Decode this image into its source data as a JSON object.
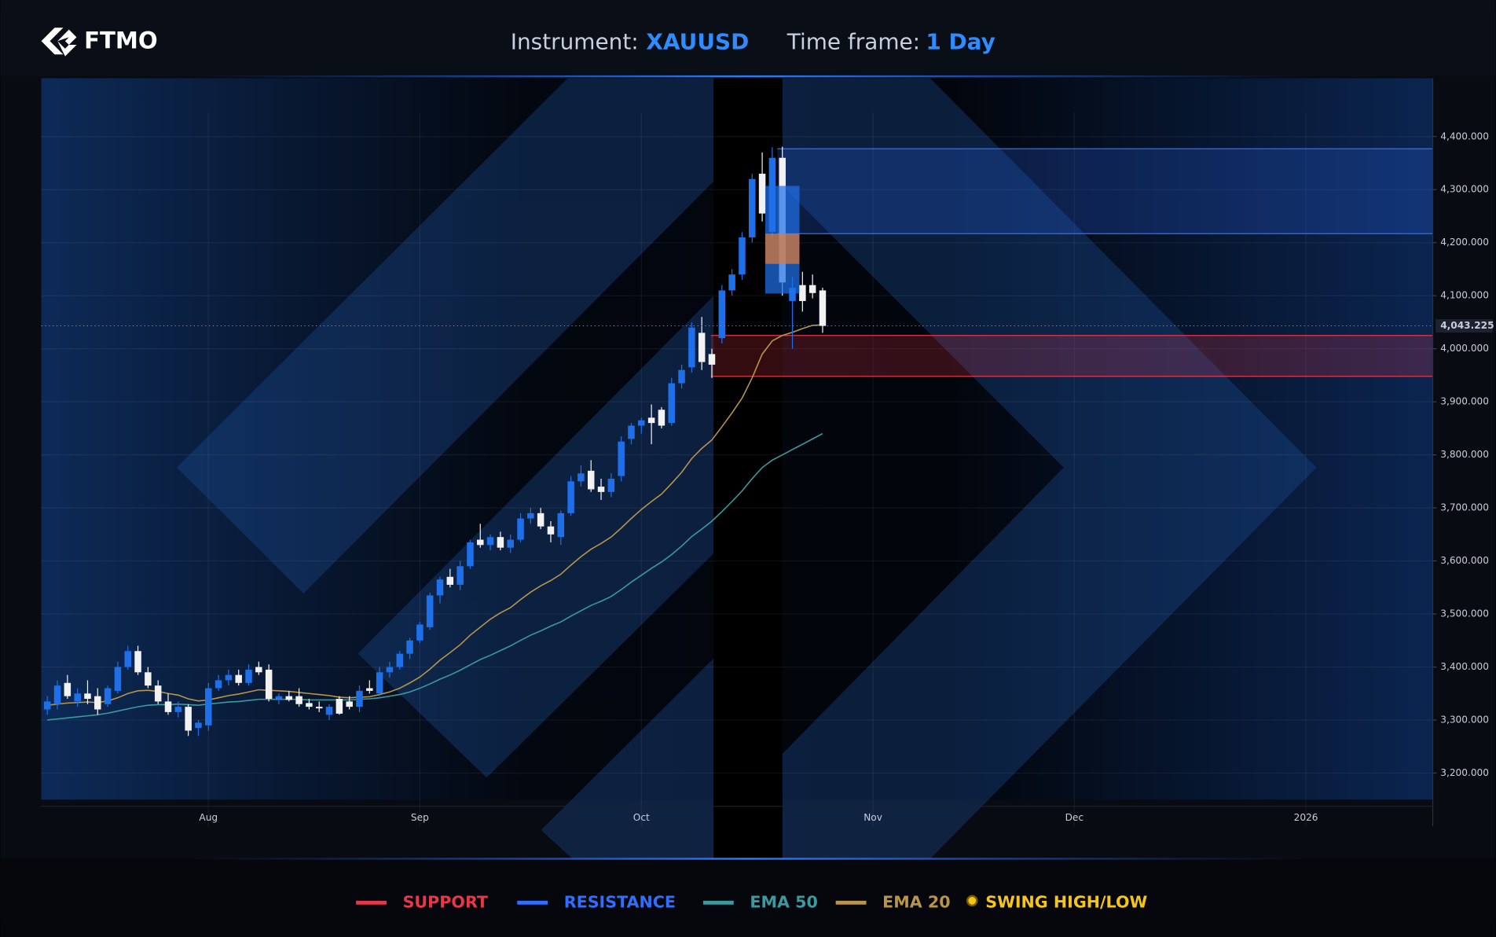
{
  "header": {
    "logo": "FTMO",
    "instrument_label": "Instrument:",
    "instrument": "XAUUSD",
    "timeframe_label": "Time frame:",
    "timeframe": "1 Day"
  },
  "chart_data": {
    "type": "candlestick",
    "x": [
      0,
      1,
      2,
      3,
      4,
      5,
      6,
      7,
      8,
      9,
      10,
      11,
      12,
      13,
      14,
      15,
      16,
      17,
      18,
      19,
      20,
      21,
      22,
      23,
      24,
      25,
      26,
      27,
      28,
      29,
      30,
      31,
      32,
      33,
      34,
      35,
      36,
      37,
      38,
      39,
      40,
      41,
      42,
      43,
      44,
      45,
      46,
      47,
      48,
      49,
      50,
      51,
      52,
      53,
      54,
      55,
      56,
      57,
      58,
      59,
      60,
      61,
      62,
      63,
      64,
      65,
      66,
      67,
      68,
      69,
      70,
      71,
      72,
      73,
      74,
      75,
      76,
      77
    ],
    "open": [
      3320,
      3330,
      3370,
      3335,
      3350,
      3345,
      3330,
      3355,
      3400,
      3430,
      3390,
      3365,
      3335,
      3315,
      3325,
      3285,
      3290,
      3360,
      3375,
      3385,
      3370,
      3400,
      3395,
      3340,
      3345,
      3345,
      3332,
      3325,
      3310,
      3340,
      3335,
      3325,
      3360,
      3350,
      3390,
      3400,
      3425,
      3450,
      3475,
      3535,
      3570,
      3555,
      3590,
      3640,
      3630,
      3645,
      3625,
      3640,
      3680,
      3690,
      3665,
      3645,
      3690,
      3750,
      3770,
      3740,
      3730,
      3760,
      3830,
      3855,
      3870,
      3885,
      3860,
      3935,
      3965,
      4030,
      3990,
      4020,
      4110,
      4140,
      4210,
      4330,
      4220,
      4360,
      4090,
      4120,
      4120,
      4110
    ],
    "high": [
      3345,
      3375,
      3385,
      3360,
      3375,
      3360,
      3365,
      3410,
      3440,
      3440,
      3400,
      3375,
      3350,
      3335,
      3330,
      3300,
      3370,
      3385,
      3395,
      3395,
      3405,
      3410,
      3405,
      3350,
      3355,
      3360,
      3340,
      3335,
      3330,
      3345,
      3345,
      3365,
      3375,
      3400,
      3410,
      3430,
      3455,
      3485,
      3540,
      3570,
      3585,
      3600,
      3640,
      3670,
      3650,
      3655,
      3650,
      3690,
      3700,
      3700,
      3675,
      3695,
      3760,
      3780,
      3790,
      3755,
      3765,
      3835,
      3860,
      3870,
      3895,
      3890,
      3945,
      3970,
      4050,
      4060,
      4000,
      4120,
      4150,
      4220,
      4330,
      4370,
      4380,
      4381,
      4135,
      4145,
      4140,
      4115
    ],
    "low": [
      3310,
      3320,
      3340,
      3325,
      3330,
      3310,
      3325,
      3350,
      3395,
      3385,
      3360,
      3330,
      3310,
      3305,
      3270,
      3270,
      3280,
      3355,
      3365,
      3365,
      3365,
      3385,
      3335,
      3330,
      3335,
      3325,
      3320,
      3315,
      3300,
      3310,
      3320,
      3315,
      3350,
      3345,
      3380,
      3395,
      3415,
      3445,
      3470,
      3520,
      3550,
      3545,
      3585,
      3625,
      3620,
      3620,
      3615,
      3635,
      3670,
      3660,
      3635,
      3630,
      3685,
      3740,
      3730,
      3715,
      3720,
      3750,
      3820,
      3840,
      3820,
      3850,
      3855,
      3925,
      3955,
      3960,
      3945,
      4010,
      4100,
      4130,
      4200,
      4240,
      4210,
      4100,
      4000,
      4070,
      4095,
      4030
    ],
    "close": [
      3335,
      3365,
      3345,
      3350,
      3340,
      3320,
      3360,
      3400,
      3430,
      3390,
      3365,
      3335,
      3315,
      3325,
      3280,
      3295,
      3360,
      3375,
      3385,
      3370,
      3395,
      3390,
      3340,
      3345,
      3338,
      3330,
      3325,
      3322,
      3325,
      3312,
      3325,
      3355,
      3355,
      3390,
      3400,
      3425,
      3450,
      3480,
      3535,
      3565,
      3555,
      3590,
      3635,
      3630,
      3645,
      3625,
      3640,
      3680,
      3690,
      3665,
      3650,
      3690,
      3750,
      3765,
      3735,
      3730,
      3755,
      3825,
      3855,
      3865,
      3860,
      3855,
      3935,
      3960,
      4040,
      3975,
      3970,
      4110,
      4140,
      4210,
      4320,
      4255,
      4360,
      4125,
      4115,
      4090,
      4105,
      4043
    ],
    "up_color": "#1f6fe8",
    "down_color": "#f2f2f2",
    "series": [
      {
        "name": "EMA 50",
        "color": "#3a9aa0",
        "values": [
          3300,
          3302,
          3304,
          3306,
          3308,
          3310,
          3313,
          3317,
          3321,
          3325,
          3328,
          3329,
          3329,
          3330,
          3329,
          3328,
          3330,
          3332,
          3334,
          3335,
          3337,
          3339,
          3339,
          3339,
          3339,
          3339,
          3338,
          3338,
          3338,
          3338,
          3338,
          3339,
          3340,
          3342,
          3345,
          3348,
          3353,
          3360,
          3368,
          3377,
          3385,
          3394,
          3404,
          3414,
          3422,
          3431,
          3440,
          3450,
          3460,
          3468,
          3477,
          3485,
          3496,
          3506,
          3516,
          3524,
          3533,
          3546,
          3560,
          3573,
          3586,
          3598,
          3612,
          3628,
          3646,
          3660,
          3675,
          3693,
          3712,
          3732,
          3755,
          3776,
          3790,
          3800,
          3810,
          3820,
          3830,
          3840
        ]
      },
      {
        "name": "EMA 20",
        "color": "#b8954a",
        "values": [
          3328,
          3330,
          3332,
          3333,
          3334,
          3333,
          3336,
          3342,
          3350,
          3355,
          3356,
          3354,
          3350,
          3347,
          3340,
          3336,
          3338,
          3342,
          3346,
          3349,
          3353,
          3357,
          3356,
          3355,
          3354,
          3352,
          3350,
          3348,
          3346,
          3343,
          3342,
          3343,
          3344,
          3348,
          3353,
          3360,
          3370,
          3381,
          3396,
          3413,
          3427,
          3442,
          3460,
          3475,
          3490,
          3502,
          3512,
          3527,
          3541,
          3553,
          3563,
          3575,
          3592,
          3608,
          3622,
          3633,
          3645,
          3662,
          3680,
          3697,
          3712,
          3726,
          3746,
          3767,
          3793,
          3812,
          3828,
          3853,
          3879,
          3907,
          3945,
          3990,
          4015,
          4025,
          4031,
          4038,
          4044,
          4045
        ]
      }
    ],
    "zones": [
      {
        "name": "SUPPORT",
        "color": "#e8364a",
        "xlim": [
          65.9,
          137.6
        ],
        "ylim": [
          3948,
          4025
        ]
      },
      {
        "name": "RESISTANCE",
        "color": "#2f6fff",
        "xlim": [
          72.5,
          137.6
        ],
        "ylim": [
          4217,
          4377
        ]
      }
    ],
    "highlights": [
      {
        "color": "#1f6fe8",
        "xlim": [
          71.3,
          74.7
        ],
        "ylim": [
          4104,
          4307
        ]
      },
      {
        "color": "#e07b39",
        "xlim": [
          71.3,
          74.7
        ],
        "ylim": [
          4160,
          4217
        ]
      }
    ],
    "swing_label": "SWING HIGH/LOW",
    "swing_color": "#f5c518",
    "last_price": {
      "value": 4043.225,
      "label": "4,043.225"
    },
    "xlim": [
      -0.6,
      137.6
    ],
    "ylim": [
      3150,
      4510
    ],
    "xticks": [
      {
        "value": 16,
        "label": "Aug"
      },
      {
        "value": 37,
        "label": "Sep"
      },
      {
        "value": 59,
        "label": "Oct"
      },
      {
        "value": 82,
        "label": "Nov"
      },
      {
        "value": 102,
        "label": "Dec"
      },
      {
        "value": 125,
        "label": "2026"
      }
    ],
    "yticks": [
      {
        "value": 3200,
        "label": "3,200.000"
      },
      {
        "value": 3300,
        "label": "3,300.000"
      },
      {
        "value": 3400,
        "label": "3,400.000"
      },
      {
        "value": 3500,
        "label": "3,500.000"
      },
      {
        "value": 3600,
        "label": "3,600.000"
      },
      {
        "value": 3700,
        "label": "3,700.000"
      },
      {
        "value": 3800,
        "label": "3,800.000"
      },
      {
        "value": 3900,
        "label": "3,900.000"
      },
      {
        "value": 4000,
        "label": "4,000.000"
      },
      {
        "value": 4100,
        "label": "4,100.000"
      },
      {
        "value": 4200,
        "label": "4,200.000"
      },
      {
        "value": 4300,
        "label": "4,300.000"
      },
      {
        "value": 4400,
        "label": "4,400.000"
      }
    ],
    "grid": true
  }
}
